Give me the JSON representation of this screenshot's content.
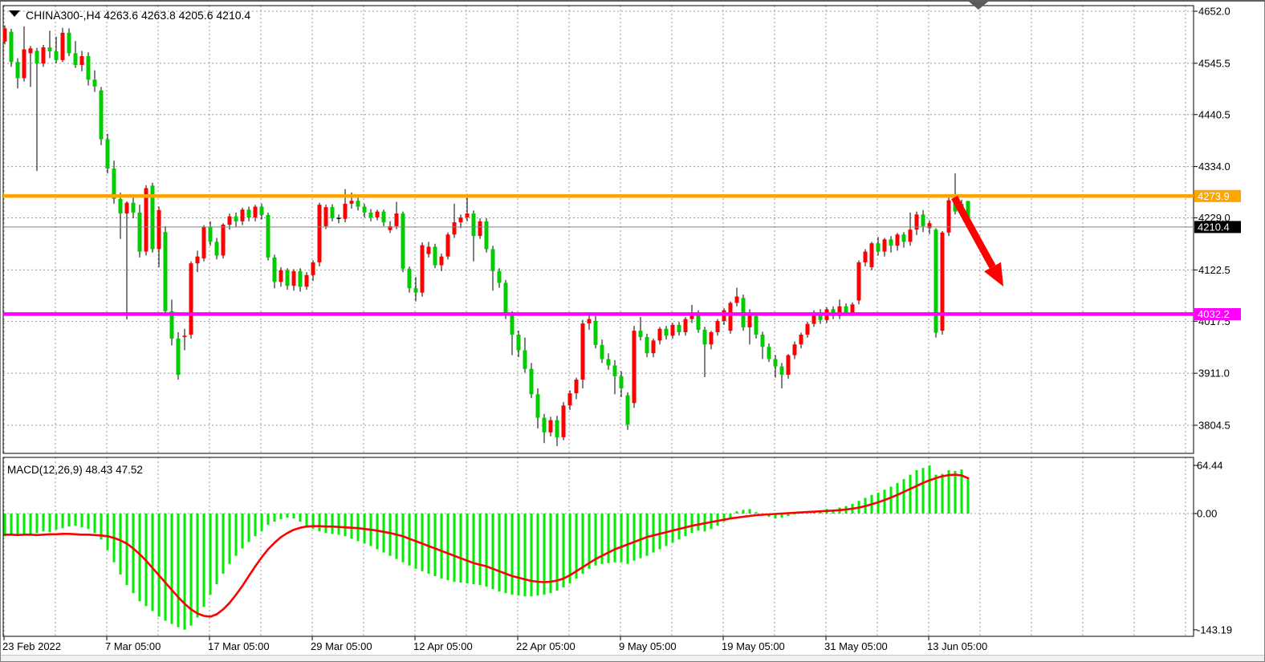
{
  "window": {
    "background": "#ffffff",
    "border_color": "#7f7f7f",
    "statusbar_color": "#f0f0f0"
  },
  "chart_data": {
    "type": "candlestick+macd",
    "symbol": "CHINA300-",
    "timeframe": "H4",
    "title_line": "CHINA300-,H4  4263.6 4263.8 4205.6 4210.4",
    "ohlc_display": {
      "open": "4263.6",
      "high": "4263.8",
      "low": "4205.6",
      "close": "4210.4"
    },
    "price_panel": {
      "y_ticks": [
        "4652.0",
        "4545.5",
        "4440.5",
        "4334.0",
        "4229.0",
        "4122.5",
        "4017.5",
        "3911.0",
        "3804.5"
      ],
      "y_tick_values": [
        4652.0,
        4545.5,
        4440.5,
        4334.0,
        4229.0,
        4122.5,
        4017.5,
        3911.0,
        3804.5
      ],
      "ylim": [
        3740,
        4662
      ],
      "grid": true,
      "lines": {
        "resistance": {
          "label": "4273.9",
          "value": 4273.9,
          "color": "#FFA500"
        },
        "current": {
          "label": "4210.4",
          "value": 4210.4,
          "color": "#808080",
          "tag_color": "#000000"
        },
        "support": {
          "label": "4032.2",
          "value": 4032.2,
          "color": "#FF00FF"
        }
      },
      "candles": [
        [
          4590,
          4623,
          4584,
          4617
        ],
        [
          4610,
          4616,
          4538,
          4548
        ],
        [
          4548,
          4556,
          4494,
          4515
        ],
        [
          4515,
          4621,
          4508,
          4574
        ],
        [
          4566,
          4581,
          4497,
          4576
        ],
        [
          4571,
          4577,
          4325,
          4545
        ],
        [
          4545,
          4583,
          4538,
          4578
        ],
        [
          4578,
          4612,
          4556,
          4570
        ],
        [
          4570,
          4600,
          4546,
          4552
        ],
        [
          4552,
          4618,
          4548,
          4608
        ],
        [
          4608,
          4617,
          4560,
          4566
        ],
        [
          4566,
          4591,
          4536,
          4542
        ],
        [
          4542,
          4571,
          4529,
          4560
        ],
        [
          4560,
          4568,
          4500,
          4512
        ],
        [
          4512,
          4531,
          4487,
          4498
        ],
        [
          4490,
          4497,
          4378,
          4390
        ],
        [
          4390,
          4401,
          4320,
          4330
        ],
        [
          4330,
          4346,
          4258,
          4268
        ],
        [
          4268,
          4281,
          4186,
          4238
        ],
        [
          4238,
          4263,
          4021,
          4260
        ],
        [
          4260,
          4273,
          4228,
          4240
        ],
        [
          4240,
          4256,
          4148,
          4160
        ],
        [
          4160,
          4296,
          4152,
          4290
        ],
        [
          4295,
          4301,
          4158,
          4165
        ],
        [
          4165,
          4252,
          4128,
          4245
        ],
        [
          4200,
          4212,
          4032,
          4038
        ],
        [
          4038,
          4062,
          3968,
          3982
        ],
        [
          3982,
          3995,
          3898,
          3908
        ],
        [
          3985,
          4002,
          3958,
          3988
        ],
        [
          3990,
          4140,
          3982,
          4136
        ],
        [
          4136,
          4162,
          4118,
          4150
        ],
        [
          4146,
          4214,
          4140,
          4210
        ],
        [
          4210,
          4222,
          4172,
          4180
        ],
        [
          4180,
          4188,
          4144,
          4152
        ],
        [
          4152,
          4218,
          4146,
          4215
        ],
        [
          4215,
          4238,
          4205,
          4232
        ],
        [
          4232,
          4240,
          4210,
          4222
        ],
        [
          4222,
          4250,
          4214,
          4246
        ],
        [
          4246,
          4252,
          4222,
          4230
        ],
        [
          4230,
          4256,
          4222,
          4252
        ],
        [
          4252,
          4258,
          4226,
          4235
        ],
        [
          4235,
          4240,
          4142,
          4148
        ],
        [
          4148,
          4154,
          4085,
          4098
        ],
        [
          4098,
          4128,
          4088,
          4122
        ],
        [
          4122,
          4126,
          4082,
          4090
        ],
        [
          4090,
          4124,
          4080,
          4120
        ],
        [
          4120,
          4126,
          4078,
          4088
        ],
        [
          4088,
          4118,
          4082,
          4112
        ],
        [
          4112,
          4142,
          4100,
          4138
        ],
        [
          4138,
          4260,
          4130,
          4256
        ],
        [
          4212,
          4256,
          4206,
          4251
        ],
        [
          4251,
          4257,
          4222,
          4228
        ],
        [
          4228,
          4236,
          4218,
          4227
        ],
        [
          4227,
          4288,
          4220,
          4258
        ],
        [
          4258,
          4281,
          4248,
          4264
        ],
        [
          4264,
          4270,
          4244,
          4252
        ],
        [
          4252,
          4258,
          4230,
          4240
        ],
        [
          4240,
          4247,
          4222,
          4230
        ],
        [
          4230,
          4246,
          4224,
          4242
        ],
        [
          4242,
          4246,
          4212,
          4220
        ],
        [
          4204,
          4222,
          4198,
          4212
        ],
        [
          4212,
          4262,
          4206,
          4238
        ],
        [
          4238,
          4242,
          4118,
          4125
        ],
        [
          4125,
          4129,
          4076,
          4085
        ],
        [
          4085,
          4108,
          4058,
          4076
        ],
        [
          4076,
          4179,
          4068,
          4173
        ],
        [
          4155,
          4180,
          4148,
          4170
        ],
        [
          4170,
          4176,
          4126,
          4132
        ],
        [
          4132,
          4156,
          4120,
          4150
        ],
        [
          4150,
          4199,
          4144,
          4195
        ],
        [
          4195,
          4258,
          4188,
          4220
        ],
        [
          4220,
          4236,
          4208,
          4230
        ],
        [
          4230,
          4278,
          4222,
          4238
        ],
        [
          4238,
          4244,
          4140,
          4192
        ],
        [
          4192,
          4228,
          4186,
          4222
        ],
        [
          4222,
          4228,
          4158,
          4165
        ],
        [
          4165,
          4172,
          4080,
          4120
        ],
        [
          4120,
          4126,
          4086,
          4096
        ],
        [
          4096,
          4102,
          4022,
          4030
        ],
        [
          4030,
          4038,
          3948,
          3990
        ],
        [
          3990,
          3998,
          3944,
          3958
        ],
        [
          3958,
          3984,
          3912,
          3920
        ],
        [
          3920,
          3932,
          3860,
          3868
        ],
        [
          3868,
          3880,
          3798,
          3820
        ],
        [
          3820,
          3828,
          3768,
          3790
        ],
        [
          3790,
          3822,
          3782,
          3815
        ],
        [
          3815,
          3824,
          3762,
          3780
        ],
        [
          3780,
          3852,
          3774,
          3845
        ],
        [
          3845,
          3876,
          3836,
          3870
        ],
        [
          3870,
          3902,
          3858,
          3898
        ],
        [
          3898,
          4020,
          3880,
          4013
        ],
        [
          4013,
          4036,
          4000,
          4022
        ],
        [
          4018,
          4028,
          3962,
          3969
        ],
        [
          3969,
          3980,
          3932,
          3940
        ],
        [
          3940,
          3952,
          3918,
          3927
        ],
        [
          3927,
          3938,
          3868,
          3905
        ],
        [
          3905,
          3915,
          3862,
          3880
        ],
        [
          3866,
          3872,
          3795,
          3806
        ],
        [
          3850,
          4008,
          3840,
          3998
        ],
        [
          3998,
          4026,
          3978,
          3985
        ],
        [
          3985,
          3992,
          3944,
          3952
        ],
        [
          3952,
          3982,
          3944,
          3978
        ],
        [
          3978,
          4006,
          3970,
          4002
        ],
        [
          4002,
          4008,
          3980,
          3988
        ],
        [
          3988,
          4014,
          3982,
          4010
        ],
        [
          4010,
          4016,
          3988,
          3995
        ],
        [
          3995,
          4026,
          3988,
          4022
        ],
        [
          4022,
          4051,
          4014,
          4035
        ],
        [
          4035,
          4040,
          3994,
          4000
        ],
        [
          4000,
          4006,
          3903,
          3970
        ],
        [
          3970,
          3998,
          3960,
          3995
        ],
        [
          3995,
          4022,
          3988,
          4018
        ],
        [
          4018,
          4044,
          4010,
          4040
        ],
        [
          3998,
          4058,
          3992,
          4055
        ],
        [
          4055,
          4086,
          4048,
          4068
        ],
        [
          4065,
          4072,
          3998,
          4005
        ],
        [
          4005,
          4042,
          3970,
          4032
        ],
        [
          4028,
          4034,
          3982,
          3990
        ],
        [
          3990,
          3996,
          3940,
          3965
        ],
        [
          3965,
          3972,
          3934,
          3940
        ],
        [
          3940,
          3948,
          3902,
          3925
        ],
        [
          3925,
          3932,
          3880,
          3908
        ],
        [
          3908,
          3950,
          3900,
          3948
        ],
        [
          3948,
          3976,
          3940,
          3970
        ],
        [
          3970,
          3994,
          3962,
          3990
        ],
        [
          3990,
          4016,
          3984,
          4012
        ],
        [
          4012,
          4040,
          4006,
          4035
        ],
        [
          4035,
          4042,
          4012,
          4020
        ],
        [
          4020,
          4046,
          4014,
          4042
        ],
        [
          4042,
          4048,
          4022,
          4028
        ],
        [
          4028,
          4062,
          4022,
          4048
        ],
        [
          4048,
          4054,
          4028,
          4035
        ],
        [
          4035,
          4056,
          4028,
          4052
        ],
        [
          4060,
          4142,
          4052,
          4138
        ],
        [
          4138,
          4165,
          4130,
          4160
        ],
        [
          4128,
          4180,
          4122,
          4177
        ],
        [
          4177,
          4190,
          4152,
          4160
        ],
        [
          4160,
          4188,
          4150,
          4185
        ],
        [
          4185,
          4192,
          4158,
          4172
        ],
        [
          4172,
          4198,
          4162,
          4195
        ],
        [
          4195,
          4200,
          4168,
          4180
        ],
        [
          4180,
          4240,
          4172,
          4205
        ],
        [
          4205,
          4242,
          4194,
          4236
        ],
        [
          4236,
          4245,
          4200,
          4212
        ],
        [
          4208,
          4224,
          4196,
          4218
        ],
        [
          4205,
          4208,
          3984,
          3994
        ],
        [
          3998,
          4202,
          3990,
          4199
        ],
        [
          4199,
          4272,
          4192,
          4265
        ],
        [
          4264,
          4320,
          4236,
          4242
        ],
        [
          4258,
          4266,
          4230,
          4240
        ],
        [
          4263.6,
          4263.8,
          4205.6,
          4210.4
        ]
      ]
    },
    "macd_panel": {
      "label": "MACD(12,26,9) 48.43 47.52",
      "macd_value": "48.43",
      "signal_value": "47.52",
      "y_ticks": [
        "64.44",
        "0.00",
        "-143.19"
      ],
      "y_tick_values": [
        64.44,
        0.0,
        -143.19
      ],
      "histogram": [
        -28,
        -27,
        -26,
        -25,
        -26,
        -24,
        -22,
        -23,
        -20,
        -18,
        -16,
        -15,
        -17,
        -19,
        -24,
        -32,
        -45,
        -60,
        -75,
        -88,
        -98,
        -108,
        -114,
        -120,
        -127,
        -132,
        -136,
        -140,
        -143,
        -138,
        -128,
        -115,
        -100,
        -87,
        -74,
        -62,
        -52,
        -43,
        -35,
        -28,
        -22,
        -14,
        -10,
        -7,
        -5,
        -6,
        -10,
        -15,
        -19,
        -22,
        -24,
        -25,
        -26,
        -28,
        -31,
        -34,
        -37,
        -40,
        -44,
        -48,
        -52,
        -56,
        -60,
        -64,
        -68,
        -71,
        -74,
        -77,
        -80,
        -82,
        -84,
        -85,
        -86,
        -87,
        -88,
        -90,
        -93,
        -96,
        -98,
        -100,
        -101,
        -102,
        -102,
        -101,
        -100,
        -98,
        -95,
        -91,
        -86,
        -80,
        -74,
        -68,
        -64,
        -62,
        -61,
        -60,
        -60,
        -62,
        -58,
        -55,
        -52,
        -48,
        -44,
        -40,
        -36,
        -32,
        -28,
        -24,
        -21,
        -22,
        -19,
        -15,
        -10,
        -5,
        3,
        5,
        6,
        2,
        -2,
        -4,
        -6,
        -5,
        -3,
        -1,
        1,
        2,
        3,
        4,
        6,
        5,
        8,
        10,
        13,
        17,
        21,
        25,
        28,
        32,
        36,
        41,
        46,
        52,
        58,
        61,
        64.4,
        52,
        53,
        58,
        57,
        59,
        48.4
      ],
      "signal": [
        -26,
        -26,
        -26.5,
        -26,
        -26,
        -26.5,
        -26,
        -25.5,
        -25.5,
        -25,
        -25,
        -25.5,
        -26,
        -26,
        -26.5,
        -27,
        -28,
        -30,
        -33,
        -37,
        -43,
        -50,
        -58,
        -67,
        -76,
        -85,
        -94,
        -103,
        -111,
        -118,
        -123,
        -126,
        -127,
        -124,
        -118,
        -110,
        -100,
        -89,
        -77,
        -65,
        -54,
        -44,
        -36,
        -29,
        -24,
        -20,
        -17.5,
        -16,
        -15.5,
        -15.5,
        -16,
        -16,
        -16.5,
        -17,
        -17.5,
        -18,
        -19,
        -20,
        -21,
        -22.5,
        -24,
        -26,
        -28,
        -31,
        -34,
        -37,
        -40,
        -43,
        -46,
        -49,
        -52,
        -55,
        -58,
        -61,
        -63,
        -65,
        -68,
        -71,
        -74,
        -77,
        -79,
        -81,
        -83,
        -84,
        -84.5,
        -84,
        -82.5,
        -80,
        -76,
        -71,
        -66,
        -61,
        -56,
        -52,
        -48,
        -44,
        -41,
        -38,
        -35,
        -32,
        -29,
        -27,
        -25,
        -23,
        -21,
        -19,
        -17,
        -15,
        -13.5,
        -12,
        -10.5,
        -9,
        -7.5,
        -6,
        -5,
        -4,
        -3,
        -2,
        -1.5,
        -1,
        -0.5,
        0,
        0.5,
        1,
        1.5,
        2,
        2.5,
        3,
        3.5,
        4,
        4.5,
        5.5,
        6.5,
        8,
        10,
        12.5,
        15,
        18,
        21.5,
        25,
        29,
        33,
        37,
        41,
        44.5,
        47.5,
        50,
        51.5,
        52,
        51,
        47.5
      ]
    },
    "x_axis": {
      "labels": [
        "23 Feb 2022",
        "7 Mar 05:00",
        "17 Mar 05:00",
        "29 Mar 05:00",
        "12 Apr 05:00",
        "22 Apr 05:00",
        "9 May 05:00",
        "19 May 05:00",
        "31 May 05:00",
        "13 Jun 05:00"
      ]
    },
    "annotation_arrow": {
      "from": [
        1189,
        246
      ],
      "to": [
        1250,
        357
      ],
      "color": "#FF0000"
    },
    "colors": {
      "up_candle": "#FF0000",
      "down_candle": "#00CC00",
      "doji": "#000000",
      "wick": "#000000",
      "histogram": "#00EE00",
      "signal_line": "#FF0000",
      "grid": "#989898",
      "frame": "#000000",
      "text": "#000000",
      "tag_text": "#FFFFFF",
      "latest_bar_marker": "#5a5a5a"
    }
  }
}
